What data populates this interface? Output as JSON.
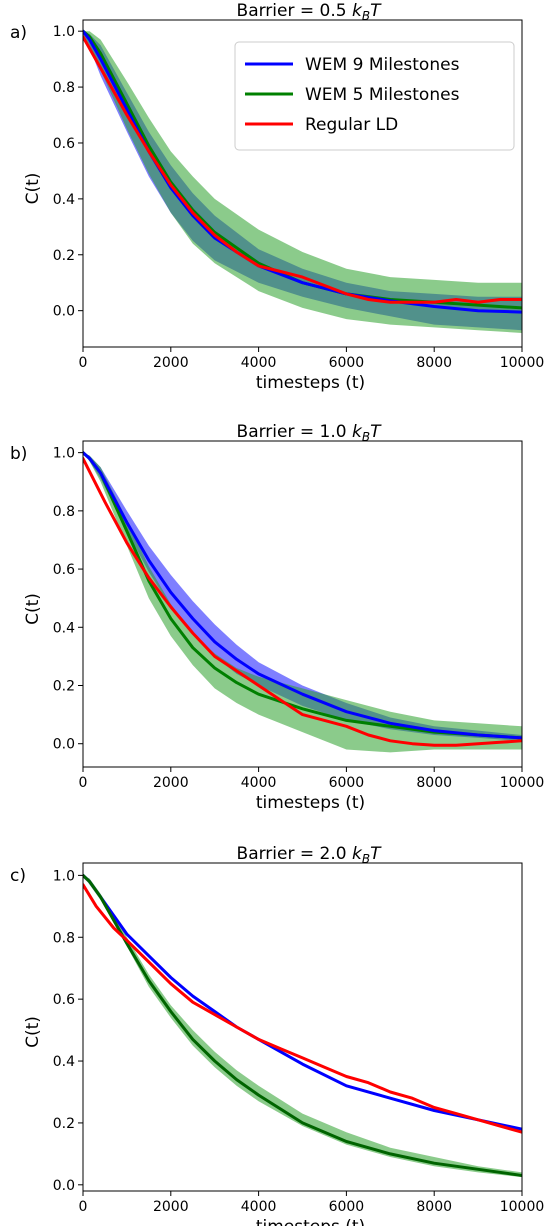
{
  "chart_data": [
    {
      "panel": "a)",
      "type": "line",
      "title_prefix": "Barrier = 0.5 ",
      "title_k": "k",
      "title_sub": "B",
      "title_T": "T",
      "xlabel": "timesteps (t)",
      "ylabel": "C(t)",
      "xlim": [
        0,
        10000
      ],
      "ylim": [
        -0.13,
        1.04
      ],
      "xticks": [
        0,
        2000,
        4000,
        6000,
        8000,
        10000
      ],
      "yticks": [
        0.0,
        0.2,
        0.4,
        0.6,
        0.8,
        1.0
      ],
      "ytick_labels": [
        "0.0",
        "0.2",
        "0.4",
        "0.6",
        "0.8",
        "1.0"
      ],
      "legend": {
        "placement": "top-right",
        "entries": [
          "WEM 9 Milestones",
          "WEM 5 Milestones",
          "Regular LD"
        ]
      },
      "series": [
        {
          "name": "WEM 9 Milestones",
          "color": "#0000ff",
          "x": [
            0,
            150,
            400,
            1000,
            1500,
            2000,
            2500,
            3000,
            4000,
            5000,
            6000,
            7000,
            8000,
            9000,
            10000
          ],
          "y": [
            1.0,
            0.97,
            0.9,
            0.72,
            0.57,
            0.44,
            0.34,
            0.26,
            0.16,
            0.1,
            0.06,
            0.035,
            0.015,
            0.0,
            -0.005
          ],
          "band_low": [
            0.99,
            0.94,
            0.84,
            0.64,
            0.48,
            0.35,
            0.25,
            0.18,
            0.1,
            0.05,
            0.01,
            -0.02,
            -0.05,
            -0.06,
            -0.07
          ],
          "band_high": [
            1.0,
            0.99,
            0.95,
            0.78,
            0.64,
            0.52,
            0.42,
            0.34,
            0.22,
            0.15,
            0.1,
            0.07,
            0.06,
            0.05,
            0.05
          ]
        },
        {
          "name": "WEM 5 Milestones",
          "color": "#008000",
          "band_color": "#2ca02c",
          "x": [
            0,
            150,
            400,
            1000,
            1500,
            2000,
            2500,
            3000,
            4000,
            5000,
            6000,
            7000,
            8000,
            9000,
            10000
          ],
          "y": [
            1.0,
            0.98,
            0.92,
            0.74,
            0.59,
            0.46,
            0.36,
            0.28,
            0.17,
            0.1,
            0.06,
            0.04,
            0.03,
            0.02,
            0.01
          ],
          "band_low": [
            0.99,
            0.95,
            0.86,
            0.65,
            0.49,
            0.35,
            0.24,
            0.17,
            0.07,
            0.01,
            -0.03,
            -0.05,
            -0.06,
            -0.07,
            -0.08
          ],
          "band_high": [
            1.0,
            1.0,
            0.97,
            0.82,
            0.69,
            0.57,
            0.48,
            0.4,
            0.29,
            0.21,
            0.15,
            0.12,
            0.11,
            0.1,
            0.1
          ]
        },
        {
          "name": "Regular LD",
          "color": "#ff0000",
          "x": [
            0,
            500,
            1000,
            1500,
            2000,
            2500,
            3000,
            3500,
            4000,
            4500,
            5000,
            5500,
            6000,
            6500,
            7000,
            7500,
            8000,
            8500,
            9000,
            9500,
            10000
          ],
          "y": [
            0.98,
            0.84,
            0.7,
            0.57,
            0.45,
            0.35,
            0.27,
            0.21,
            0.16,
            0.14,
            0.12,
            0.09,
            0.06,
            0.04,
            0.03,
            0.03,
            0.03,
            0.04,
            0.03,
            0.04,
            0.04
          ]
        }
      ]
    },
    {
      "panel": "b)",
      "type": "line",
      "title_prefix": "Barrier = 1.0 ",
      "title_k": "k",
      "title_sub": "B",
      "title_T": "T",
      "xlabel": "timesteps (t)",
      "ylabel": "C(t)",
      "xlim": [
        0,
        10000
      ],
      "ylim": [
        -0.08,
        1.04
      ],
      "xticks": [
        0,
        2000,
        4000,
        6000,
        8000,
        10000
      ],
      "yticks": [
        0.0,
        0.2,
        0.4,
        0.6,
        0.8,
        1.0
      ],
      "ytick_labels": [
        "0.0",
        "0.2",
        "0.4",
        "0.6",
        "0.8",
        "1.0"
      ],
      "series": [
        {
          "name": "WEM 9 Milestones",
          "color": "#0000ff",
          "x": [
            0,
            150,
            400,
            1000,
            1500,
            2000,
            2500,
            3000,
            3500,
            4000,
            5000,
            6000,
            7000,
            8000,
            9000,
            10000
          ],
          "y": [
            1.0,
            0.98,
            0.93,
            0.76,
            0.63,
            0.52,
            0.43,
            0.35,
            0.29,
            0.24,
            0.17,
            0.11,
            0.07,
            0.045,
            0.03,
            0.02
          ],
          "band_low": [
            1.0,
            0.97,
            0.91,
            0.73,
            0.59,
            0.47,
            0.38,
            0.3,
            0.24,
            0.2,
            0.13,
            0.08,
            0.05,
            0.03,
            0.02,
            0.01
          ],
          "band_high": [
            1.0,
            0.99,
            0.95,
            0.8,
            0.68,
            0.58,
            0.49,
            0.41,
            0.34,
            0.28,
            0.2,
            0.14,
            0.09,
            0.06,
            0.045,
            0.03
          ]
        },
        {
          "name": "WEM 5 Milestones",
          "color": "#008000",
          "band_color": "#2ca02c",
          "x": [
            0,
            150,
            400,
            1000,
            1500,
            2000,
            2500,
            3000,
            3500,
            4000,
            5000,
            6000,
            7000,
            8000,
            9000,
            10000
          ],
          "y": [
            1.0,
            0.98,
            0.93,
            0.73,
            0.56,
            0.43,
            0.33,
            0.26,
            0.21,
            0.17,
            0.12,
            0.08,
            0.06,
            0.04,
            0.03,
            0.02
          ],
          "band_low": [
            1.0,
            0.97,
            0.9,
            0.68,
            0.5,
            0.37,
            0.27,
            0.19,
            0.14,
            0.1,
            0.04,
            -0.02,
            -0.03,
            -0.02,
            -0.02,
            -0.02
          ],
          "band_high": [
            1.0,
            0.99,
            0.95,
            0.77,
            0.61,
            0.48,
            0.38,
            0.31,
            0.26,
            0.23,
            0.19,
            0.15,
            0.11,
            0.08,
            0.07,
            0.06
          ]
        },
        {
          "name": "Regular LD",
          "color": "#ff0000",
          "x": [
            0,
            500,
            1000,
            1500,
            2000,
            2500,
            3000,
            3500,
            4000,
            4500,
            5000,
            5500,
            6000,
            6500,
            7000,
            7500,
            8000,
            8500,
            9000,
            9500,
            10000
          ],
          "y": [
            0.98,
            0.83,
            0.69,
            0.57,
            0.47,
            0.38,
            0.3,
            0.25,
            0.2,
            0.15,
            0.1,
            0.08,
            0.06,
            0.03,
            0.01,
            0.0,
            -0.005,
            -0.005,
            0.0,
            0.005,
            0.01
          ]
        }
      ]
    },
    {
      "panel": "c)",
      "type": "line",
      "title_prefix": "Barrier = 2.0 ",
      "title_k": "k",
      "title_sub": "B",
      "title_T": "T",
      "xlabel": "timesteps (t)",
      "ylabel": "C(t)",
      "xlim": [
        0,
        10000
      ],
      "ylim": [
        -0.02,
        1.04
      ],
      "xticks": [
        0,
        2000,
        4000,
        6000,
        8000,
        10000
      ],
      "yticks": [
        0.0,
        0.2,
        0.4,
        0.6,
        0.8,
        1.0
      ],
      "ytick_labels": [
        "0.0",
        "0.2",
        "0.4",
        "0.6",
        "0.8",
        "1.0"
      ],
      "series": [
        {
          "name": "WEM 9 Milestones",
          "color": "#0000ff",
          "x": [
            0,
            150,
            400,
            1000,
            1500,
            2000,
            2500,
            3000,
            3500,
            4000,
            5000,
            6000,
            7000,
            8000,
            9000,
            10000
          ],
          "y": [
            1.0,
            0.98,
            0.93,
            0.81,
            0.74,
            0.67,
            0.61,
            0.56,
            0.51,
            0.47,
            0.39,
            0.32,
            0.28,
            0.24,
            0.21,
            0.18
          ]
        },
        {
          "name": "WEM 5 Milestones",
          "color": "#006400",
          "band_color": "#2ca02c",
          "x": [
            0,
            150,
            400,
            1000,
            1500,
            2000,
            2500,
            3000,
            3500,
            4000,
            5000,
            6000,
            7000,
            8000,
            9000,
            10000
          ],
          "y": [
            1.0,
            0.98,
            0.93,
            0.78,
            0.66,
            0.56,
            0.47,
            0.4,
            0.34,
            0.29,
            0.2,
            0.14,
            0.1,
            0.07,
            0.05,
            0.03
          ],
          "band_low": [
            1.0,
            0.97,
            0.92,
            0.77,
            0.64,
            0.54,
            0.45,
            0.38,
            0.32,
            0.27,
            0.19,
            0.13,
            0.09,
            0.06,
            0.04,
            0.025
          ],
          "band_high": [
            1.0,
            0.99,
            0.94,
            0.8,
            0.68,
            0.58,
            0.5,
            0.43,
            0.37,
            0.32,
            0.23,
            0.17,
            0.12,
            0.09,
            0.06,
            0.04
          ]
        },
        {
          "name": "Regular LD",
          "color": "#ff0000",
          "x": [
            0,
            300,
            700,
            1000,
            1500,
            2000,
            2500,
            3000,
            3500,
            4000,
            4500,
            5000,
            5500,
            6000,
            6500,
            7000,
            7500,
            8000,
            8500,
            9000,
            9500,
            10000
          ],
          "y": [
            0.97,
            0.9,
            0.83,
            0.79,
            0.72,
            0.65,
            0.59,
            0.55,
            0.51,
            0.47,
            0.44,
            0.41,
            0.38,
            0.35,
            0.33,
            0.3,
            0.28,
            0.25,
            0.23,
            0.21,
            0.19,
            0.17
          ]
        }
      ]
    }
  ]
}
